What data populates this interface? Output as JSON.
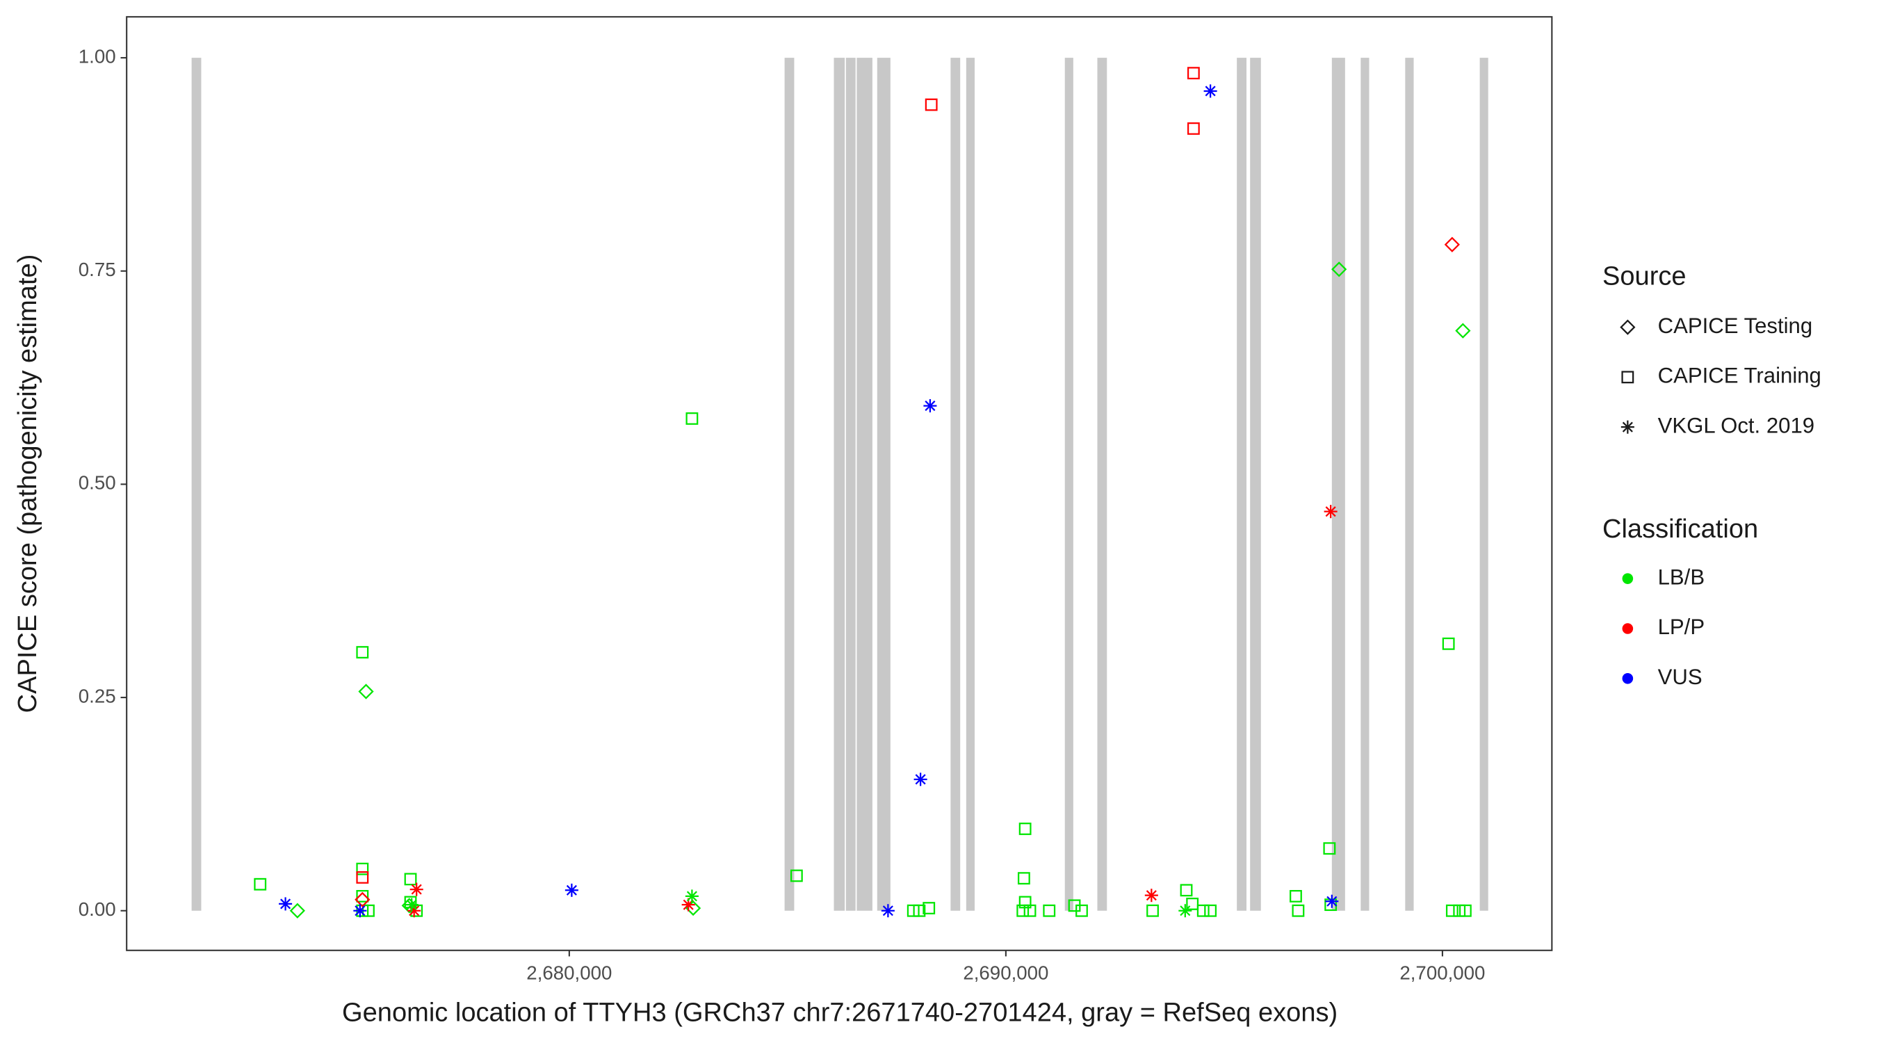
{
  "chart_data": {
    "type": "scatter",
    "x_label": "Genomic location of TTYH3 (GRCh37 chr7:2671740-2701424, gray = RefSeq exons)",
    "y_label": "CAPICE score (pathogenicity estimate)",
    "xlim": [
      2669862,
      2702507
    ],
    "ylim": [
      -0.0465,
      1.048
    ],
    "xticks": [
      {
        "value": 2680000,
        "label": "2,680,000"
      },
      {
        "value": 2690000,
        "label": "2,690,000"
      },
      {
        "value": 2700000,
        "label": "2,700,000"
      }
    ],
    "yticks": [
      {
        "value": 0,
        "label": "0.00"
      },
      {
        "value": 0.25,
        "label": "0.25"
      },
      {
        "value": 0.5,
        "label": "0.50"
      },
      {
        "value": 0.75,
        "label": "0.75"
      },
      {
        "value": 1,
        "label": "1.00"
      }
    ],
    "exon_color": "#c8c8c8",
    "exons": [
      [
        2671350,
        2671570
      ],
      [
        2684932,
        2685152
      ],
      [
        2686061,
        2686310
      ],
      [
        2686337,
        2686557
      ],
      [
        2686585,
        2686943
      ],
      [
        2687053,
        2687356
      ],
      [
        2688734,
        2688954
      ],
      [
        2689092,
        2689285
      ],
      [
        2691351,
        2691544
      ],
      [
        2692095,
        2692315
      ],
      [
        2695291,
        2695511
      ],
      [
        2695594,
        2695842
      ],
      [
        2697467,
        2697770
      ],
      [
        2698128,
        2698321
      ],
      [
        2699147,
        2699341
      ],
      [
        2700855,
        2701048
      ]
    ],
    "legend_source": {
      "title": "Source",
      "items": [
        {
          "name": "CAPICE Testing",
          "shape": "diamond"
        },
        {
          "name": "CAPICE Training",
          "shape": "square"
        },
        {
          "name": "VKGL Oct. 2019",
          "shape": "asterisk"
        }
      ]
    },
    "legend_classification": {
      "title": "Classification",
      "items": [
        {
          "name": "LB/B",
          "color": "#00e600"
        },
        {
          "name": "LP/P",
          "color": "#ff0000"
        },
        {
          "name": "VUS",
          "color": "#0000ff"
        }
      ]
    },
    "series": [
      {
        "source": "CAPICE Training",
        "classification": "LB/B",
        "x": [
          2672920,
          2675262,
          2675262,
          2675262,
          2675262,
          2675400,
          2676364,
          2676364,
          2676502,
          2682811,
          2685207,
          2687880,
          2688018,
          2688238,
          2690442,
          2690414,
          2690442,
          2690387,
          2690552,
          2690993,
          2691571,
          2691737,
          2694134,
          2694272,
          2694520,
          2694685,
          2696641,
          2696696,
          2697412,
          2697440,
          2700139,
          2700222,
          2700387,
          2700525,
          2693362
        ],
        "y": [
          0.031,
          0.303,
          0.049,
          0.017,
          0,
          0,
          0.037,
          0.01,
          0,
          0.577,
          0.041,
          0,
          0,
          0.003,
          0.096,
          0.038,
          0.01,
          0,
          0,
          0,
          0.006,
          0,
          0.024,
          0.008,
          0,
          0,
          0.017,
          0,
          0.073,
          0.007,
          0.313,
          0,
          0,
          0,
          0
        ]
      },
      {
        "source": "CAPICE Training",
        "classification": "LP/P",
        "x": [
          2688293,
          2694299,
          2694299,
          2675262
        ],
        "y": [
          0.945,
          0.982,
          0.917,
          0.039
        ]
      },
      {
        "source": "CAPICE Testing",
        "classification": "LB/B",
        "x": [
          2675345,
          2697632,
          2700469,
          2673774,
          2682838,
          2676336
        ],
        "y": [
          0.257,
          0.752,
          0.68,
          0,
          0.003,
          0.006
        ]
      },
      {
        "source": "CAPICE Testing",
        "classification": "LP/P",
        "x": [
          2700222,
          2675262
        ],
        "y": [
          0.781,
          0.013
        ]
      },
      {
        "source": "VKGL Oct. 2019",
        "classification": "VUS",
        "x": [
          2673499,
          2675207,
          2680056,
          2687301,
          2688045,
          2688265,
          2694685,
          2697467
        ],
        "y": [
          0.008,
          0,
          0.024,
          0,
          0.154,
          0.592,
          0.961,
          0.011
        ]
      },
      {
        "source": "VKGL Oct. 2019",
        "classification": "LP/P",
        "x": [
          2676502,
          2676446,
          2693335,
          2697440,
          2682728
        ],
        "y": [
          0.025,
          0,
          0.018,
          0.468,
          0.007
        ]
      },
      {
        "source": "VKGL Oct. 2019",
        "classification": "LB/B",
        "x": [
          2682811,
          2676391,
          2694107
        ],
        "y": [
          0.017,
          0.007,
          0
        ]
      }
    ]
  }
}
